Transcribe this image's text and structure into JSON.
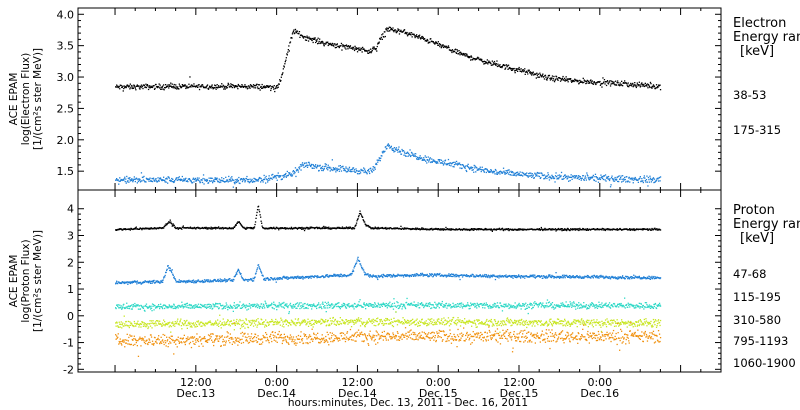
{
  "xaxis": {
    "label": "hours:minutes, Dec. 13, 2011 - Dec. 16, 2011",
    "range_hours": [
      -5.5,
      90
    ],
    "ticks": [
      {
        "h": 12,
        "time": "12:00",
        "day": "Dec.13"
      },
      {
        "h": 24,
        "time": "0:00",
        "day": "Dec.14"
      },
      {
        "h": 36,
        "time": "12:00",
        "day": "Dec.14"
      },
      {
        "h": 48,
        "time": "0:00",
        "day": "Dec.15"
      },
      {
        "h": 60,
        "time": "12:00",
        "day": "Dec.15"
      },
      {
        "h": 72,
        "time": "0:00",
        "day": "Dec.16"
      }
    ]
  },
  "legends": {
    "electron": {
      "title1": "Electron",
      "title2": "Energy ran",
      "unit": "[keV]"
    },
    "proton": {
      "title1": "Proton",
      "title2": "Energy ran",
      "unit": "[keV]"
    }
  },
  "chart_data": [
    {
      "type": "scatter",
      "ylabel": [
        "ACE EPAM",
        "log(Electron Flux)",
        "[1/(cm²s ster MeV)]"
      ],
      "ylim": [
        1.2,
        4.1
      ],
      "yticks": [
        1.5,
        2.0,
        2.5,
        3.0,
        3.5,
        4.0
      ],
      "ytick_labels": [
        "1.5",
        "2.0",
        "2.5",
        "3.0",
        "3.5",
        "4.0"
      ],
      "series": [
        {
          "name": "38-53",
          "color": "#000000",
          "noise": 0.035,
          "points": [
            [
              0,
              2.85
            ],
            [
              10,
              2.86
            ],
            [
              20,
              2.86
            ],
            [
              23.6,
              2.85
            ],
            [
              24.2,
              2.85
            ],
            [
              25.2,
              3.25
            ],
            [
              26.4,
              3.75
            ],
            [
              28,
              3.65
            ],
            [
              31,
              3.55
            ],
            [
              35,
              3.48
            ],
            [
              38,
              3.42
            ],
            [
              38.8,
              3.5
            ],
            [
              40.2,
              3.78
            ],
            [
              43,
              3.72
            ],
            [
              47,
              3.57
            ],
            [
              52,
              3.35
            ],
            [
              56,
              3.22
            ],
            [
              60,
              3.12
            ],
            [
              64,
              3.0
            ],
            [
              68,
              2.95
            ],
            [
              74,
              2.91
            ],
            [
              81,
              2.86
            ]
          ]
        },
        {
          "name": "175-315",
          "color": "#1f7fd6",
          "noise": 0.045,
          "points": [
            [
              0,
              1.37
            ],
            [
              10,
              1.37
            ],
            [
              20,
              1.36
            ],
            [
              26,
              1.45
            ],
            [
              28.2,
              1.62
            ],
            [
              30,
              1.58
            ],
            [
              33,
              1.55
            ],
            [
              35,
              1.53
            ],
            [
              38,
              1.5
            ],
            [
              38.7,
              1.6
            ],
            [
              40.3,
              1.93
            ],
            [
              43,
              1.8
            ],
            [
              47,
              1.68
            ],
            [
              52,
              1.58
            ],
            [
              56,
              1.5
            ],
            [
              62,
              1.44
            ],
            [
              70,
              1.4
            ],
            [
              81,
              1.37
            ]
          ]
        }
      ]
    },
    {
      "type": "scatter",
      "ylabel": [
        "ACE EPAM",
        "log(Proton Flux)",
        "[1/(cm²s ster MeV)]"
      ],
      "ylim": [
        -2.1,
        4.7
      ],
      "yticks": [
        -2,
        -1,
        0,
        1,
        2,
        3,
        4
      ],
      "ytick_labels": [
        "-2",
        "-1",
        "0",
        "1",
        "2",
        "3",
        "4"
      ],
      "series": [
        {
          "name": "47-68",
          "color": "#000000",
          "noise": 0.03,
          "points": [
            [
              0,
              3.25
            ],
            [
              7,
              3.3
            ],
            [
              8,
              3.55
            ],
            [
              9,
              3.3
            ],
            [
              17.5,
              3.3
            ],
            [
              18.3,
              3.55
            ],
            [
              19,
              3.3
            ],
            [
              20.6,
              3.3
            ],
            [
              21.2,
              4.15
            ],
            [
              21.8,
              3.3
            ],
            [
              35.5,
              3.3
            ],
            [
              36.3,
              3.9
            ],
            [
              37.2,
              3.4
            ],
            [
              38,
              3.3
            ],
            [
              50,
              3.25
            ],
            [
              81,
              3.25
            ]
          ]
        },
        {
          "name": "115-195",
          "color": "#1f7fd6",
          "noise": 0.05,
          "points": [
            [
              0,
              1.25
            ],
            [
              7,
              1.3
            ],
            [
              7.8,
              1.9
            ],
            [
              9,
              1.3
            ],
            [
              17.5,
              1.35
            ],
            [
              18.2,
              1.75
            ],
            [
              19,
              1.35
            ],
            [
              20.6,
              1.4
            ],
            [
              21.2,
              1.95
            ],
            [
              22,
              1.4
            ],
            [
              35,
              1.55
            ],
            [
              36,
              2.15
            ],
            [
              37,
              1.6
            ],
            [
              38,
              1.5
            ],
            [
              45,
              1.55
            ],
            [
              60,
              1.5
            ],
            [
              81,
              1.45
            ]
          ]
        },
        {
          "name": "310-580",
          "color": "#2ed8c6",
          "noise": 0.1,
          "points": [
            [
              0,
              0.35
            ],
            [
              40,
              0.42
            ],
            [
              81,
              0.4
            ]
          ]
        },
        {
          "name": "795-1193",
          "color": "#c8e622",
          "noise": 0.13,
          "points": [
            [
              0,
              -0.3
            ],
            [
              40,
              -0.2
            ],
            [
              81,
              -0.25
            ]
          ]
        },
        {
          "name": "1060-1900",
          "color": "#f0900c",
          "noise": 0.2,
          "points": [
            [
              0,
              -0.9
            ],
            [
              40,
              -0.75
            ],
            [
              81,
              -0.75
            ]
          ]
        }
      ]
    }
  ]
}
